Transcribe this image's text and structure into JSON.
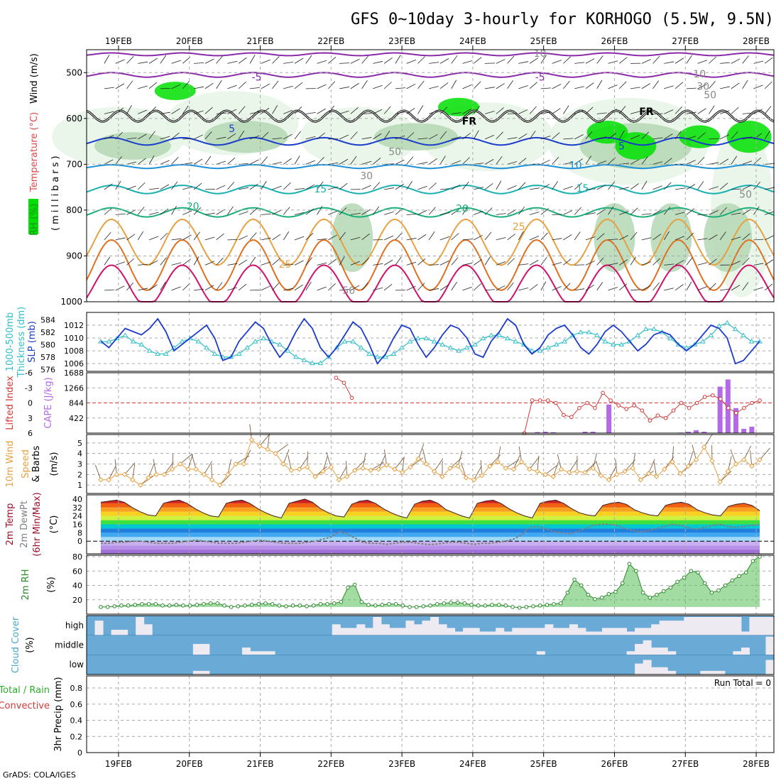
{
  "title": "GFS 0~10day 3-hourly for KORHOGO (5.5W, 9.5N)",
  "credit": "GrADS: COLA/IGES",
  "colors": {
    "rh_light": "#e6f5e6",
    "rh_mid": "#b4d7b4",
    "rh_dark": "#96c896",
    "rh_green": "#00e000",
    "slp_line": "#1c3ccc",
    "thickness_line": "#2fbfc8",
    "lifted_index": "#d23a3a",
    "cape_bar": "#b46ae6",
    "wind_speed": "#e8a040",
    "wind_barb": "#806040",
    "temp_max": "#a0102a",
    "dewpoint": "#808080",
    "rh2m_fill": "#56c056",
    "rh2m_line": "#2a8a2a",
    "cloud_bg": "#6aaad6",
    "cloud_fill": "#eeeaf2"
  },
  "dates": [
    "19FEB",
    "20FEB",
    "21FEB",
    "22FEB",
    "23FEB",
    "24FEB",
    "25FEB",
    "26FEB",
    "27FEB",
    "28FEB"
  ],
  "panels": {
    "upper_air": {
      "y_label_parts": [
        {
          "text": "RH (%)",
          "color": "#2a8a2a"
        },
        {
          "text": "Temperature (°C)",
          "color": "#dd4a4a"
        },
        {
          "text": "Wind (m/s)",
          "color": "#000000"
        }
      ],
      "y_label_units": "(millibars)",
      "y_ticks": [
        500,
        600,
        700,
        800,
        900,
        1000
      ],
      "ylim": [
        450,
        1000
      ],
      "contour_labels": [
        {
          "text": "-5",
          "color": "#8a2aa8",
          "day": 1.95,
          "p": 510
        },
        {
          "text": "-5",
          "color": "#8a2aa8",
          "day": 5.95,
          "p": 510
        },
        {
          "text": "FR",
          "color": "#000000",
          "day": 4.95,
          "p": 606
        },
        {
          "text": "FR",
          "color": "#000000",
          "day": 7.45,
          "p": 585
        },
        {
          "text": "5",
          "color": "#1c3ccc",
          "day": 1.6,
          "p": 622
        },
        {
          "text": "5",
          "color": "#1c3ccc",
          "day": 7.1,
          "p": 660
        },
        {
          "text": "10",
          "color": "#1e90d8",
          "day": 6.45,
          "p": 702
        },
        {
          "text": "15",
          "color": "#18b0b0",
          "day": 2.85,
          "p": 754
        },
        {
          "text": "15",
          "color": "#18b0b0",
          "day": 6.55,
          "p": 752
        },
        {
          "text": "20",
          "color": "#18b078",
          "day": 1.05,
          "p": 792
        },
        {
          "text": "20",
          "color": "#18b078",
          "day": 4.85,
          "p": 796
        },
        {
          "text": "25",
          "color": "#e8a040",
          "day": 5.65,
          "p": 836
        },
        {
          "text": "25",
          "color": "#e8a040",
          "day": 2.35,
          "p": 918
        },
        {
          "text": "50",
          "color": "#888888",
          "day": 3.9,
          "p": 672
        },
        {
          "text": "50",
          "color": "#888888",
          "day": 3.25,
          "p": 975
        },
        {
          "text": "50",
          "color": "#888888",
          "day": 8.85,
          "p": 765
        },
        {
          "text": "10",
          "color": "#888888",
          "day": 5.95,
          "p": 458
        },
        {
          "text": "10",
          "color": "#888888",
          "day": 8.2,
          "p": 503
        },
        {
          "text": "30",
          "color": "#888888",
          "day": 8.25,
          "p": 530
        },
        {
          "text": "30",
          "color": "#888888",
          "day": 3.5,
          "p": 725
        },
        {
          "text": "50",
          "color": "#888888",
          "day": 8.35,
          "p": 548
        }
      ]
    },
    "slp": {
      "y_label_parts": [
        {
          "text": "1000-500mb",
          "color": "#2fbfc8"
        },
        {
          "text": "Thickness (dm)",
          "color": "#2fbfc8"
        },
        {
          "text": "SLP (mb)",
          "color": "#1c3ccc"
        }
      ],
      "thickness_ticks": [
        576,
        578,
        580,
        582,
        584
      ],
      "slp_ticks": [
        1006,
        1008,
        1010,
        1012
      ]
    },
    "cape": {
      "y_label_parts": [
        {
          "text": "Lifted Index",
          "color": "#d23a3a"
        },
        {
          "text": "CAPE (J/kg)",
          "color": "#b46ae6"
        }
      ],
      "li_ticks": [
        "6",
        "3",
        "0",
        "-3",
        "-6"
      ],
      "cape_ticks": [
        "422",
        "844",
        "1266",
        "1688"
      ]
    },
    "wind10m": {
      "y_label_parts": [
        {
          "text": "10m Wind",
          "color": "#e8a040"
        },
        {
          "text": "Speed",
          "color": "#e8a040"
        },
        {
          "text": "& Barbs",
          "color": "#000000"
        },
        {
          "text": "(m/s)",
          "color": "#000000"
        }
      ],
      "y_ticks": [
        1,
        2,
        3,
        4,
        5
      ]
    },
    "temp2m": {
      "y_label_parts": [
        {
          "text": "2m Temp",
          "color": "#a0102a"
        },
        {
          "text": "2m DewPt",
          "color": "#808080"
        },
        {
          "text": "(6hr Min/Max)",
          "color": "#a0102a"
        },
        {
          "text": "(°C)",
          "color": "#000000"
        }
      ],
      "y_ticks": [
        0,
        8,
        16,
        24,
        32,
        40
      ],
      "y_ticks_minor": [
        -8,
        4,
        12,
        20,
        28,
        36
      ]
    },
    "rh2m": {
      "y_label_parts": [
        {
          "text": "2m RH",
          "color": "#2a8a2a"
        },
        {
          "text": "(%)",
          "color": "#000000"
        }
      ],
      "y_ticks": [
        20,
        40,
        60,
        80
      ]
    },
    "cloud": {
      "y_label_parts": [
        {
          "text": "Cloud Cover",
          "color": "#4aa8c8"
        },
        {
          "text": "(%)",
          "color": "#000000"
        }
      ],
      "levels": [
        "high",
        "middle",
        "low"
      ]
    },
    "precip": {
      "y_label_parts": [
        {
          "text": "Total / Rain",
          "color": "#2ab02a"
        },
        {
          "text": "Convective",
          "color": "#d23a3a"
        },
        {
          "text": "3hr Precip (mm)",
          "color": "#000000"
        }
      ],
      "y_ticks": [
        "0",
        "0.2",
        "0.4",
        "0.6",
        "0.8"
      ],
      "run_total": "Run Total = 0"
    }
  },
  "chart_data": {
    "type": "line",
    "x_unit": "days from 19FEB 00Z (3-hourly)",
    "xlim": [
      -0.45,
      9.25
    ],
    "slp_mb": [
      1009.5,
      1008.5,
      1010,
      1011.5,
      1011,
      1010.5,
      1011.5,
      1013,
      1011,
      1008,
      1009,
      1010,
      1011,
      1012,
      1010,
      1006.5,
      1007,
      1009.5,
      1011,
      1012.5,
      1011.5,
      1009,
      1007,
      1008.5,
      1011,
      1013,
      1011.5,
      1008.5,
      1007,
      1008.5,
      1010.5,
      1012.5,
      1011.5,
      1009,
      1006,
      1007.5,
      1010,
      1012,
      1011.5,
      1009,
      1007,
      1008.5,
      1010.5,
      1012,
      1011.5,
      1010,
      1007.5,
      1007,
      1009.5,
      1011,
      1013,
      1012,
      1009,
      1007.5,
      1008.5,
      1010.5,
      1011.5,
      1012,
      1010.5,
      1008.5,
      1007.5,
      1009,
      1011,
      1012,
      1011,
      1009.5,
      1008,
      1009,
      1010.5,
      1011,
      1010.5,
      1009,
      1008,
      1009,
      1010.5,
      1012,
      1011.5,
      1010,
      1006,
      1006.5,
      1008,
      1009.5
    ],
    "thickness_dm": [
      580.5,
      580.5,
      581,
      581.5,
      580.5,
      580,
      579,
      578.5,
      578.5,
      579.5,
      580.5,
      581,
      580.5,
      579.5,
      578.5,
      578,
      578,
      578.5,
      579.5,
      580.5,
      581,
      580.5,
      580,
      579,
      578,
      577.5,
      577,
      577,
      578,
      579.5,
      580.5,
      580.5,
      579.5,
      578.5,
      578,
      578,
      578.5,
      579.5,
      580.5,
      581,
      581,
      580.5,
      580,
      579.5,
      579,
      579.5,
      580,
      581,
      581.5,
      581.5,
      581,
      580.5,
      580,
      579,
      579,
      579.5,
      580,
      580.5,
      581.5,
      582,
      582,
      581.5,
      580.5,
      580,
      580,
      580.5,
      581.5,
      582.5,
      582.5,
      582,
      581,
      580,
      579.5,
      580,
      580.5,
      581.5,
      583,
      583.5,
      582.5,
      581.5,
      580.5,
      580.5
    ],
    "cape_jkg": [
      0,
      0,
      0,
      0,
      0,
      0,
      0,
      0,
      0,
      0,
      0,
      0,
      0,
      0,
      0,
      0,
      0,
      0,
      0,
      0,
      0,
      0,
      0,
      0,
      0,
      0,
      0,
      0,
      0,
      0,
      0,
      0,
      0,
      0,
      0,
      0,
      0,
      0,
      0,
      0,
      0,
      0,
      0,
      0,
      0,
      0,
      0,
      0,
      0,
      0,
      0,
      0,
      0,
      0,
      0,
      30,
      40,
      25,
      0,
      0,
      0,
      40,
      40,
      0,
      800,
      0,
      0,
      0,
      0,
      0,
      0,
      0,
      0,
      15,
      40,
      80,
      40,
      0,
      1300,
      1500,
      700,
      120,
      180,
      0
    ],
    "lifted_index": [
      null,
      null,
      null,
      null,
      null,
      null,
      null,
      null,
      null,
      null,
      null,
      null,
      null,
      null,
      null,
      null,
      null,
      null,
      null,
      null,
      null,
      null,
      null,
      null,
      null,
      null,
      null,
      null,
      null,
      null,
      -5,
      -4,
      -1,
      null,
      null,
      null,
      null,
      null,
      null,
      null,
      null,
      null,
      null,
      null,
      null,
      null,
      null,
      null,
      null,
      null,
      null,
      null,
      null,
      null,
      6,
      -0.5,
      -0.5,
      -0.5,
      0,
      2.4,
      2.8,
      1,
      0,
      1,
      -2,
      -0.5,
      0.5,
      1.2,
      0.5,
      1.5,
      3.5,
      2.5,
      3,
      1.5,
      0,
      1,
      0,
      -1.2,
      -1.5,
      -0.8,
      1,
      2,
      1,
      0,
      -0.5
    ],
    "wind10m_speed_ms": [
      1.5,
      1.5,
      2,
      2,
      1.5,
      1,
      1.7,
      2,
      2,
      2.5,
      3,
      2.5,
      2.5,
      2,
      1.5,
      1,
      2,
      3,
      3,
      5.3,
      4.7,
      4.4,
      4,
      3,
      2.4,
      2.5,
      2.7,
      1.8,
      2.3,
      2.7,
      1.5,
      1.8,
      2.4,
      2.6,
      2.4,
      2.5,
      2.9,
      2.5,
      2.2,
      2.7,
      3.5,
      3,
      2.3,
      1.8,
      2.6,
      2.8,
      1.7,
      1.5,
      1.9,
      2.8,
      3.2,
      2.6,
      2.5,
      3.2,
      2.5,
      2.3,
      2,
      1.8,
      2.5,
      2.2,
      2.3,
      2.2,
      2.6,
      1.9,
      1.5,
      2,
      2.3,
      2.6,
      1.5,
      2.1,
      1.8,
      2.5,
      3.2,
      2.1,
      2.8,
      3.4,
      4.6,
      3.3,
      1.3,
      2.3,
      3,
      3.4,
      2.8,
      3.4
    ],
    "temp2m_c": [
      37,
      38,
      39,
      37,
      32,
      28,
      25,
      24,
      36,
      38,
      39,
      36,
      31,
      27,
      24,
      23,
      36,
      38,
      39,
      36,
      31,
      27,
      24,
      22,
      36,
      38,
      40,
      37,
      31,
      27,
      24,
      23,
      35,
      38,
      39,
      36,
      31,
      27,
      24,
      22,
      35,
      38,
      39,
      36,
      30,
      27,
      24,
      22,
      36,
      38,
      39,
      36,
      31,
      27,
      24,
      22,
      36,
      38,
      39,
      36,
      31,
      27,
      25,
      24,
      34,
      36,
      37,
      35,
      30,
      27,
      25,
      24,
      34,
      36,
      37,
      35,
      30,
      27,
      25,
      24,
      33,
      35,
      36,
      34,
      29
    ],
    "dewpoint2m_c": [
      -2,
      -2,
      -1,
      -1,
      0,
      0,
      -1,
      -2,
      -2,
      -2,
      -1,
      0,
      1,
      0,
      -1,
      -2,
      -2,
      -2,
      -1,
      0,
      1,
      0,
      -1,
      -2,
      -2,
      -2,
      -1,
      0,
      2,
      4,
      9,
      7,
      3,
      -1,
      -2,
      -2,
      -3,
      -2,
      -1,
      -1,
      -2,
      -3,
      -3,
      -2,
      -1,
      -1,
      -2,
      -3,
      -2,
      -2,
      -1,
      0,
      2,
      6,
      13,
      14,
      12,
      9,
      8,
      7,
      9,
      12,
      15,
      16,
      16,
      15,
      12,
      10,
      9,
      10,
      12,
      14,
      16,
      15,
      13,
      11,
      13,
      15,
      16,
      14,
      13,
      14,
      15,
      16
    ],
    "rh2m_pct": [
      10,
      10,
      11,
      12,
      12,
      13,
      14,
      14,
      14,
      12,
      12,
      13,
      12,
      12,
      13,
      14,
      15,
      15,
      12,
      10,
      11,
      12,
      13,
      14,
      15,
      14,
      12,
      11,
      12,
      12,
      11,
      12,
      14,
      14,
      15,
      17,
      37,
      41,
      17,
      13,
      12,
      13,
      14,
      14,
      12,
      10,
      10,
      11,
      12,
      14,
      15,
      16,
      16,
      15,
      13,
      12,
      12,
      13,
      13,
      12,
      10,
      9,
      10,
      11,
      12,
      13,
      14,
      15,
      30,
      48,
      40,
      27,
      21,
      23,
      28,
      31,
      43,
      70,
      60,
      30,
      23,
      27,
      32,
      37,
      45,
      51,
      60,
      58,
      43,
      30,
      33,
      40,
      47,
      53,
      58,
      74,
      80
    ],
    "cloud_high_pct": [
      0,
      80,
      0,
      30,
      30,
      0,
      100,
      60,
      0,
      0,
      0,
      0,
      0,
      0,
      0,
      0,
      0,
      0,
      0,
      0,
      0,
      0,
      0,
      0,
      0,
      0,
      0,
      0,
      0,
      0,
      60,
      40,
      40,
      60,
      40,
      100,
      60,
      40,
      40,
      80,
      60,
      80,
      100,
      60,
      40,
      20,
      40,
      40,
      20,
      20,
      40,
      20,
      40,
      40,
      40,
      40,
      60,
      40,
      40,
      60,
      40,
      20,
      20,
      40,
      40,
      40,
      20,
      40,
      40,
      60,
      80,
      80,
      80,
      100,
      100,
      100,
      100,
      100,
      100,
      100,
      20,
      100,
      100,
      100
    ],
    "cloud_mid_pct": [
      0,
      0,
      0,
      0,
      0,
      0,
      0,
      0,
      0,
      0,
      0,
      0,
      0,
      60,
      60,
      0,
      0,
      0,
      0,
      40,
      20,
      20,
      20,
      0,
      0,
      0,
      0,
      0,
      0,
      0,
      0,
      0,
      0,
      0,
      0,
      0,
      0,
      0,
      0,
      0,
      0,
      0,
      0,
      0,
      0,
      0,
      0,
      0,
      0,
      0,
      0,
      0,
      0,
      0,
      0,
      20,
      0,
      0,
      0,
      0,
      0,
      0,
      0,
      0,
      0,
      0,
      20,
      60,
      80,
      40,
      40,
      20,
      0,
      0,
      0,
      0,
      0,
      0,
      0,
      20,
      40,
      0,
      0,
      100
    ],
    "cloud_low_pct": [
      0,
      0,
      0,
      0,
      0,
      0,
      0,
      0,
      0,
      0,
      0,
      0,
      0,
      20,
      20,
      0,
      0,
      0,
      0,
      0,
      0,
      0,
      0,
      0,
      0,
      0,
      0,
      0,
      0,
      0,
      0,
      0,
      0,
      0,
      0,
      0,
      0,
      0,
      0,
      0,
      0,
      0,
      0,
      0,
      0,
      0,
      0,
      0,
      0,
      0,
      0,
      0,
      0,
      0,
      0,
      0,
      0,
      0,
      0,
      0,
      0,
      0,
      0,
      0,
      0,
      0,
      0,
      60,
      80,
      40,
      40,
      20,
      0,
      0,
      0,
      20,
      20,
      20,
      0,
      0,
      0,
      0,
      0,
      80
    ],
    "precip_3hr_mm": [
      0,
      0,
      0,
      0,
      0,
      0,
      0,
      0,
      0,
      0,
      0,
      0,
      0,
      0,
      0,
      0,
      0,
      0,
      0,
      0,
      0,
      0,
      0,
      0,
      0,
      0,
      0,
      0,
      0,
      0,
      0,
      0,
      0,
      0,
      0,
      0,
      0,
      0,
      0,
      0,
      0,
      0,
      0,
      0,
      0,
      0,
      0,
      0,
      0,
      0,
      0,
      0,
      0,
      0,
      0,
      0,
      0,
      0,
      0,
      0,
      0,
      0,
      0,
      0,
      0,
      0,
      0,
      0,
      0,
      0,
      0,
      0,
      0,
      0,
      0,
      0,
      0,
      0,
      0,
      0,
      0,
      0,
      0,
      0
    ],
    "temp_levels_c": [
      "-5",
      "FR",
      "5",
      "10",
      "15",
      "20",
      "25"
    ]
  }
}
